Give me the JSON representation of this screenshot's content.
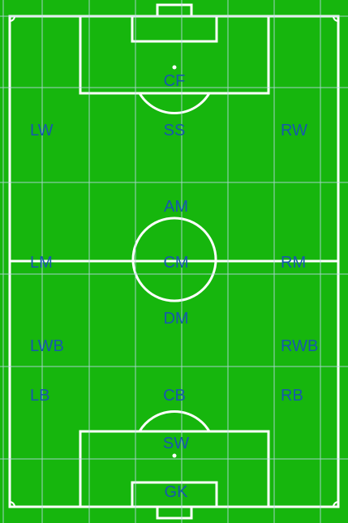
{
  "colors": {
    "pitch": "#16b60d",
    "lines": "#ffffff",
    "grid": "#b9d9e6",
    "label": "#1757ae"
  },
  "positions": [
    {
      "key": "cf",
      "label": "CF"
    },
    {
      "key": "lw",
      "label": "LW"
    },
    {
      "key": "ss",
      "label": "SS"
    },
    {
      "key": "rw",
      "label": "RW"
    },
    {
      "key": "am",
      "label": "AM"
    },
    {
      "key": "lm",
      "label": "LM"
    },
    {
      "key": "cm",
      "label": "CM"
    },
    {
      "key": "rm",
      "label": "RM"
    },
    {
      "key": "dm",
      "label": "DM"
    },
    {
      "key": "lwb",
      "label": "LWB"
    },
    {
      "key": "rwb",
      "label": "RWB"
    },
    {
      "key": "lb",
      "label": "LB"
    },
    {
      "key": "cb",
      "label": "CB"
    },
    {
      "key": "rb",
      "label": "RB"
    },
    {
      "key": "sw",
      "label": "SW"
    },
    {
      "key": "gk",
      "label": "GK"
    }
  ]
}
